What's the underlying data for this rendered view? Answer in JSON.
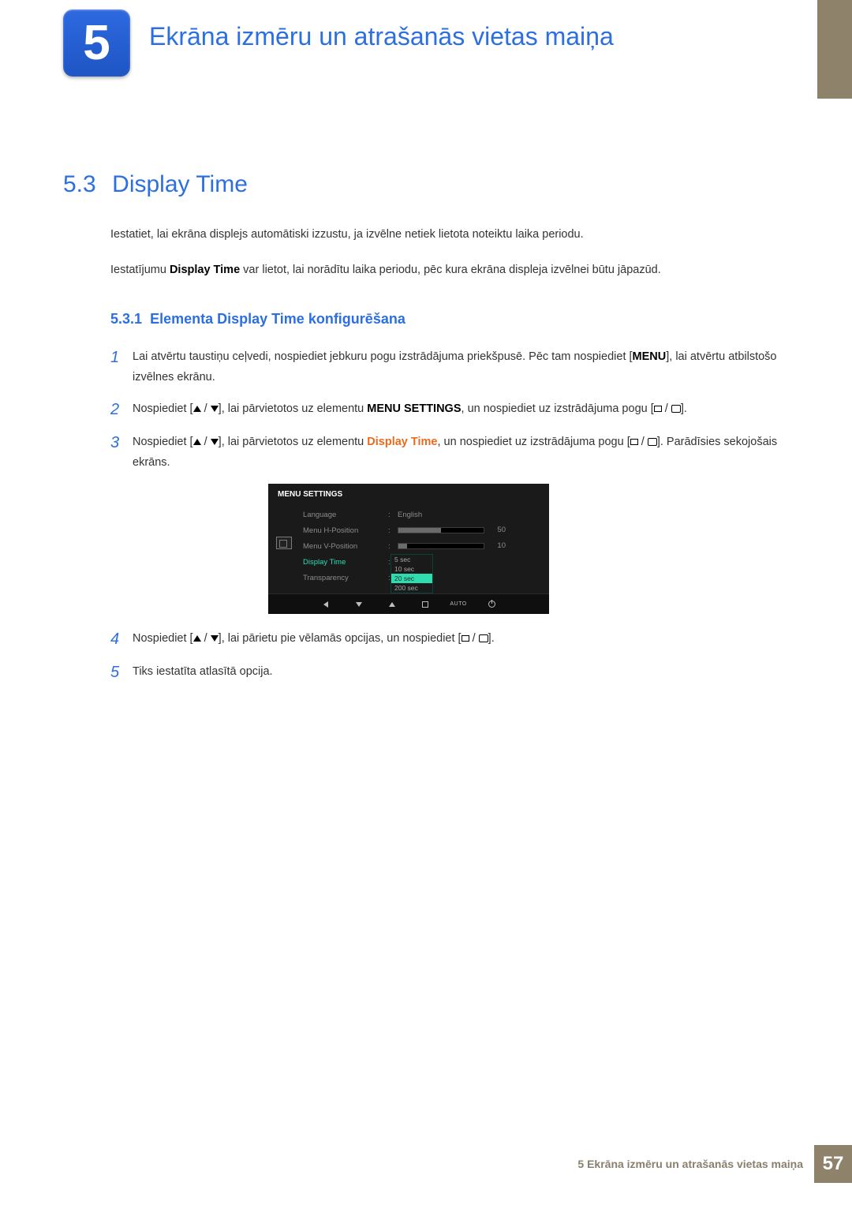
{
  "chapter": {
    "number": "5",
    "title": "Ekrāna izmēru un atrašanās vietas maiņa"
  },
  "section": {
    "num": "5.3",
    "title": "Display Time",
    "intro1": "Iestatiet, lai ekrāna displejs automātiski izzustu, ja izvēlne netiek lietota noteiktu laika periodu.",
    "intro2_a": "Iestatījumu ",
    "intro2_bold": "Display Time",
    "intro2_b": " var lietot, lai norādītu laika periodu, pēc kura ekrāna displeja izvēlnei būtu jāpazūd."
  },
  "subsection": {
    "num": "5.3.1",
    "title": "Elementa Display Time konfigurēšana"
  },
  "steps": [
    {
      "n": "1",
      "a": "Lai atvērtu taustiņu ceļvedi, nospiediet jebkuru pogu izstrādājuma priekšpusē. Pēc tam nospiediet [",
      "menu": "MENU",
      "b": "], lai atvērtu atbilstošo izvēlnes ekrānu."
    },
    {
      "n": "2",
      "a": "Nospiediet [",
      "b": "], lai pārvietotos uz elementu ",
      "ms": "MENU SETTINGS",
      "c": ", un nospiediet uz izstrādājuma pogu [",
      "d": "]."
    },
    {
      "n": "3",
      "a": "Nospiediet [",
      "b": "], lai pārvietotos uz elementu ",
      "dt": "Display Time",
      "c": ", un nospiediet uz izstrādājuma pogu [",
      "d": "]. Parādīsies sekojošais ekrāns."
    },
    {
      "n": "4",
      "a": "Nospiediet [",
      "b": "], lai pārietu pie vēlamās opcijas, un nospiediet [",
      "c": "]."
    },
    {
      "n": "5",
      "a": "Tiks iestatīta atlasītā opcija."
    }
  ],
  "osd": {
    "title": "MENU SETTINGS",
    "rows": {
      "language": {
        "label": "Language",
        "value": "English"
      },
      "hpos": {
        "label": "Menu H-Position",
        "value": 50,
        "fill_pct": 50
      },
      "vpos": {
        "label": "Menu V-Position",
        "value": 10,
        "fill_pct": 10
      },
      "display_time": {
        "label": "Display Time"
      },
      "transparency": {
        "label": "Transparency"
      }
    },
    "dropdown": {
      "options": [
        "5 sec",
        "10 sec",
        "20 sec",
        "200 sec"
      ],
      "selected_index": 2
    },
    "nav_auto": "AUTO",
    "colors": {
      "bg": "#1a1a1a",
      "text_dim": "#8b8b8b",
      "text_active": "#2fdcb0",
      "highlight": "#2fdcb0"
    }
  },
  "footer": {
    "text": "5 Ekrāna izmēru un atrašanās vietas maiņa",
    "page": "57"
  }
}
